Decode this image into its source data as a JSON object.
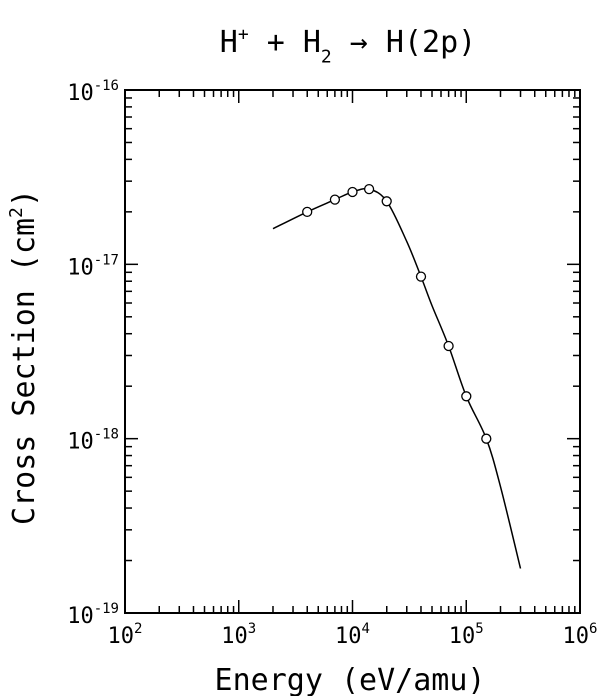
{
  "chart_data": {
    "type": "line",
    "title": {
      "parts": [
        {
          "text": "H",
          "shift": "base"
        },
        {
          "text": "+",
          "shift": "sup"
        },
        {
          "text": " + H",
          "shift": "base"
        },
        {
          "text": "2",
          "shift": "sub"
        },
        {
          "text": " → H(2p)",
          "shift": "base"
        }
      ]
    },
    "xlabel": "Energy (eV/amu)",
    "ylabel": {
      "parts": [
        {
          "text": "Cross Section (cm",
          "shift": "base"
        },
        {
          "text": "2",
          "shift": "sup"
        },
        {
          "text": ")",
          "shift": "base"
        }
      ]
    },
    "x_scale": "log",
    "y_scale": "log",
    "xlim": [
      100,
      1000000
    ],
    "ylim": [
      1e-19,
      1e-16
    ],
    "x_tick_labels": [
      {
        "base": "10",
        "exp": "2"
      },
      {
        "base": "10",
        "exp": "3"
      },
      {
        "base": "10",
        "exp": "4"
      },
      {
        "base": "10",
        "exp": "5"
      },
      {
        "base": "10",
        "exp": "6"
      }
    ],
    "y_tick_labels": [
      {
        "base": "10",
        "exp": "-19"
      },
      {
        "base": "10",
        "exp": "-18"
      },
      {
        "base": "10",
        "exp": "-17"
      },
      {
        "base": "10",
        "exp": "-16"
      }
    ],
    "grid": false,
    "series": [
      {
        "style": "fit-curve",
        "x": [
          2000,
          4000,
          7000,
          10000,
          14000,
          20000,
          30000,
          40000,
          50000,
          70000,
          100000,
          150000,
          200000,
          300000
        ],
        "y": [
          1.6e-17,
          2e-17,
          2.35e-17,
          2.6e-17,
          2.7e-17,
          2.3e-17,
          1.35e-17,
          8.5e-18,
          5.8e-18,
          3.4e-18,
          1.75e-18,
          1e-18,
          5.3e-19,
          1.8e-19
        ]
      },
      {
        "style": "open-circle-markers",
        "x": [
          4000,
          7000,
          10000,
          14000,
          20000,
          40000,
          70000,
          100000,
          150000
        ],
        "y": [
          2e-17,
          2.35e-17,
          2.6e-17,
          2.7e-17,
          2.3e-17,
          8.5e-18,
          3.4e-18,
          1.75e-18,
          1e-18
        ]
      }
    ]
  }
}
